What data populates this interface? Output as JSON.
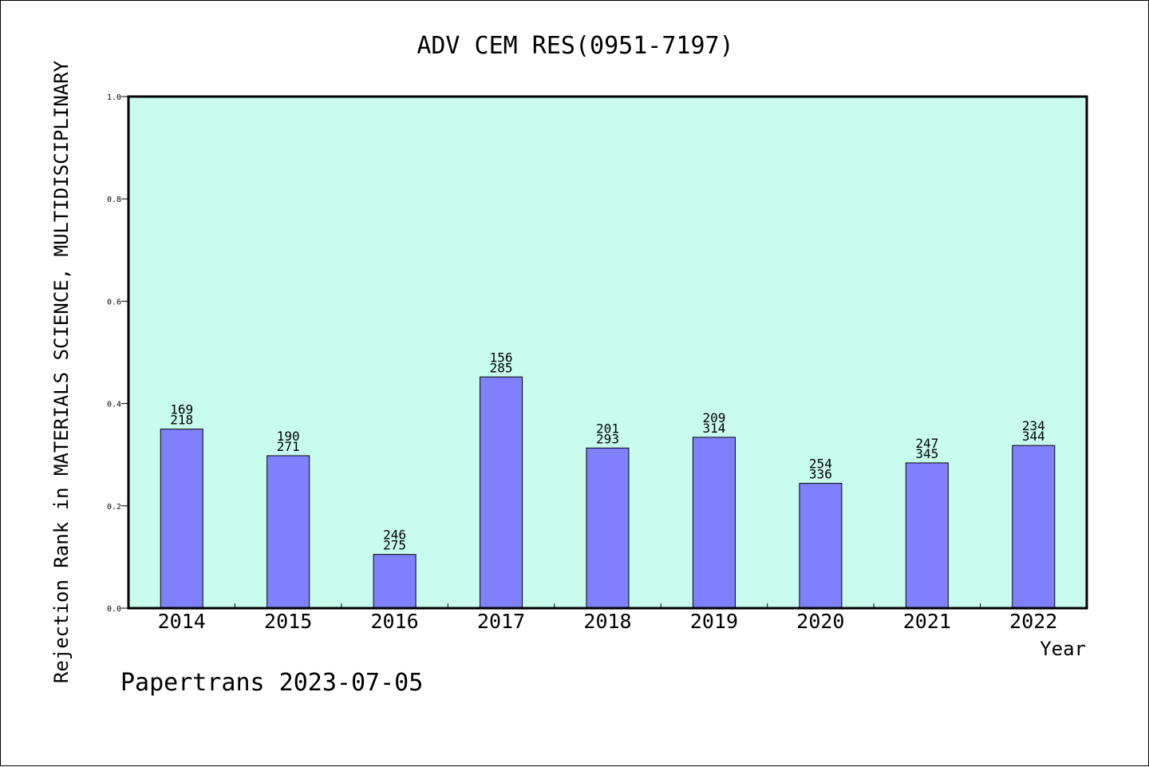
{
  "footer": "Papertrans 2023-07-05",
  "chart_data": {
    "type": "bar",
    "title": "ADV CEM RES(0951-7197)",
    "xlabel": "Year",
    "ylabel": "Rejection Rank in MATERIALS SCIENCE, MULTIDISCIPLINARY",
    "ylim": [
      0,
      1.0
    ],
    "yticks": [
      "0.0",
      "0.2",
      "0.4",
      "0.6",
      "0.8",
      "1.0"
    ],
    "categories": [
      "2014",
      "2015",
      "2016",
      "2017",
      "2018",
      "2019",
      "2020",
      "2021",
      "2022"
    ],
    "values": [
      0.35,
      0.298,
      0.105,
      0.452,
      0.313,
      0.334,
      0.244,
      0.284,
      0.318
    ],
    "rank_top": [
      "169",
      "190",
      "246",
      "156",
      "201",
      "209",
      "254",
      "247",
      "234"
    ],
    "rank_bottom": [
      "218",
      "271",
      "275",
      "285",
      "293",
      "314",
      "336",
      "345",
      "344"
    ],
    "plot_background": "#c8fcee",
    "bar_color": "#8080ff",
    "grid": false,
    "legend": "none"
  }
}
